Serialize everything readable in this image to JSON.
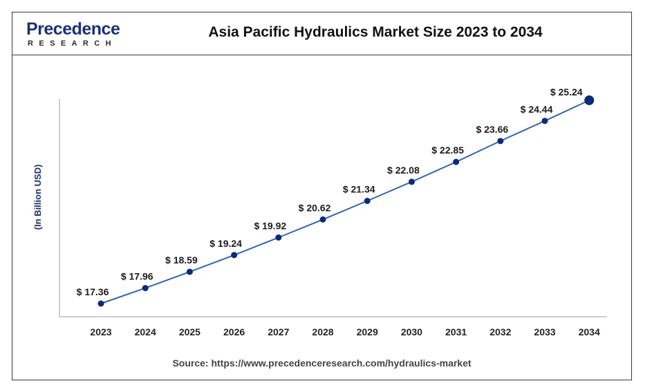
{
  "brand": {
    "name": "Precedence",
    "sub": "RESEARCH"
  },
  "chart_data": {
    "type": "line",
    "title": "Asia Pacific Hydraulics Market Size 2023 to 2034",
    "ylabel": "(In Billion USD)",
    "xlabel": "",
    "categories": [
      "2023",
      "2024",
      "2025",
      "2026",
      "2027",
      "2028",
      "2029",
      "2030",
      "2031",
      "2032",
      "2033",
      "2034"
    ],
    "series": [
      {
        "values": [
          17.36,
          17.96,
          18.59,
          19.24,
          19.92,
          20.62,
          21.34,
          22.08,
          22.85,
          23.66,
          24.44,
          25.24
        ]
      }
    ],
    "labels": [
      "$ 17.36",
      "$ 17.96",
      "$ 18.59",
      "$ 19.24",
      "$ 19.92",
      "$ 20.62",
      "$ 21.34",
      "$ 22.08",
      "$ 22.85",
      "$ 23.66",
      "$ 24.44",
      "$ 25.24"
    ],
    "grid": false,
    "colors": {
      "line": "#2f64b4",
      "marker": "#0d2a78"
    }
  },
  "source": {
    "prefix": "Source: ",
    "url": "https://www.precedenceresearch.com/hydraulics-market"
  }
}
